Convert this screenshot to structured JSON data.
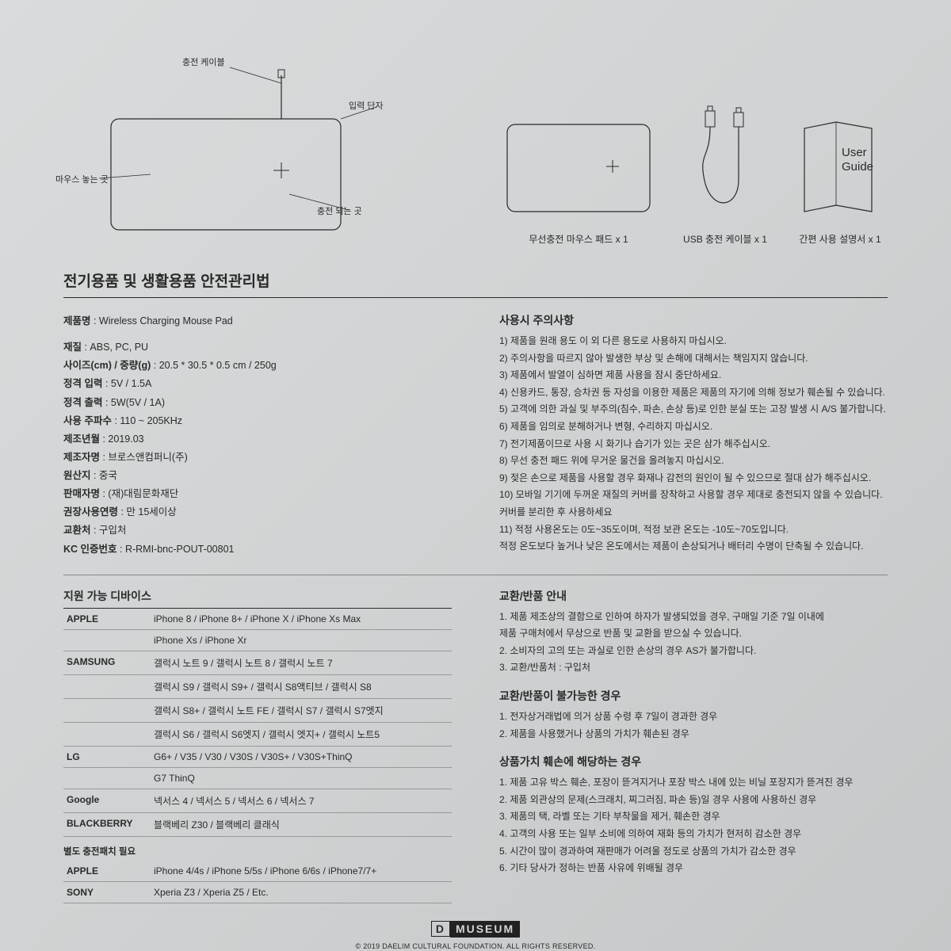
{
  "diagram": {
    "callouts": {
      "cable": "충전 케이블",
      "input": "입력 단자",
      "mouse_area": "마우스 놓는 곳",
      "charge_area": "충전 되는 곳"
    },
    "stroke": "#2a2a2a",
    "bg": "#d5d7d8"
  },
  "package_items": [
    {
      "label": "무선충전 마우스 패드 x 1"
    },
    {
      "label": "USB 충전 케이블 x 1"
    },
    {
      "label": "간편 사용 설명서 x 1"
    }
  ],
  "user_guide_text": "User\nGuide",
  "section_title": "전기용품 및 생활용품 안전관리법",
  "specs": [
    {
      "label": "제품명",
      "value": "Wireless Charging Mouse Pad"
    },
    {
      "label": "재질",
      "value": "ABS, PC, PU"
    },
    {
      "label": "사이즈(cm) / 중량(g)",
      "value": "20.5 * 30.5 * 0.5 cm / 250g"
    },
    {
      "label": "정격 입력",
      "value": "5V / 1.5A"
    },
    {
      "label": "정격 출력",
      "value": "5W(5V / 1A)"
    },
    {
      "label": "사용 주파수",
      "value": "110 ~ 205KHz"
    },
    {
      "label": "제조년월",
      "value": "2019.03"
    },
    {
      "label": "제조자명",
      "value": "브로스앤컴퍼니(주)"
    },
    {
      "label": "원산지",
      "value": "중국"
    },
    {
      "label": "판매자명",
      "value": "(재)대림문화재단"
    },
    {
      "label": "권장사용연령",
      "value": "만 15세이상"
    },
    {
      "label": "교환처",
      "value": "구입처"
    },
    {
      "label": "KC 인증번호",
      "value": "R-RMI-bnc-POUT-00801"
    }
  ],
  "caution_title": "사용시 주의사항",
  "cautions": [
    "1) 제품을 원래 용도 이 외 다른 용도로 사용하지 마십시오.",
    "2) 주의사항을 따르지 않아 발생한 부상 및 손해에 대해서는 책임지지 않습니다.",
    "3) 제품에서 발열이 심하면 제품 사용을 잠시 중단하세요.",
    "4) 신용카드, 통장, 승차권 등 자성을 이용한 제품은 제품의 자기에 의해 정보가 훼손될 수 있습니다.",
    "5) 고객에 의한 과실 및 부주의(침수, 파손, 손상 등)로 인한 분실 또는 고장 발생 시 A/S 불가합니다.",
    "6) 제품을 임의로 분해하거나 변형, 수리하지 마십시오.",
    "7) 전기제품이므로 사용 시 화기나 습기가 있는 곳은 삼가 해주십시오.",
    "8) 무선 충전 패드 위에 무거운 물건을 올려놓지 마십시오.",
    "9) 젖은 손으로 제품을 사용할 경우 화재나 감전의 원인이 될 수 있으므로 절대 삼가 해주십시오.",
    "10) 모바일 기기에 두꺼운 재질의 커버를 장착하고 사용할 경우 제대로 충전되지 않을 수 있습니다. 커버를 분리한 후 사용하세요",
    "11) 적정 사용온도는 0도~35도이며, 적정 보관 온도는 -10도~70도입니다.",
    "      적정 온도보다 높거나 낮은 온도에서는 제품이 손상되거나 배터리 수명이 단축될 수 있습니다."
  ],
  "devices_title": "지원 가능 디바이스",
  "devices": [
    {
      "brand": "APPLE",
      "rows": [
        "iPhone 8 / iPhone 8+ / iPhone X / iPhone Xs Max",
        "iPhone Xs / iPhone Xr"
      ]
    },
    {
      "brand": "SAMSUNG",
      "rows": [
        "갤럭시 노트 9 / 갤럭시 노트 8 / 갤럭시 노트 7",
        "갤럭시 S9 / 갤럭시 S9+ / 갤럭시 S8액티브 / 갤럭시 S8",
        "갤럭시 S8+ / 갤럭시 노트 FE / 갤럭시 S7 / 갤럭시 S7엣지",
        "갤럭시 S6 / 갤럭시 S6엣지 / 갤럭시 엣지+ / 갤럭시 노트5"
      ]
    },
    {
      "brand": "LG",
      "rows": [
        "G6+ / V35 / V30 / V30S / V30S+ / V30S+ThinQ",
        "G7 ThinQ"
      ]
    },
    {
      "brand": "Google",
      "rows": [
        "넥서스 4 / 넥서스 5 / 넥서스 6 / 넥서스 7"
      ]
    },
    {
      "brand": "BLACKBERRY",
      "rows": [
        "블랙베리 Z30 / 블랙베리 클래식"
      ]
    }
  ],
  "patch_note": "별도 충전패치 필요",
  "patch_devices": [
    {
      "brand": "APPLE",
      "rows": [
        "iPhone 4/4s / iPhone 5/5s / iPhone 6/6s / iPhone7/7+"
      ]
    },
    {
      "brand": "SONY",
      "rows": [
        "Xperia Z3 / Xperia Z5 / Etc."
      ]
    }
  ],
  "return_title": "교환/반품 안내",
  "return_items": [
    "1. 제품 제조상의 결함으로 인하여 하자가 발생되었을 경우, 구매일 기준 7일 이내에",
    "    제품 구매처에서 무상으로 반품 및 교환을 받으실 수 있습니다.",
    "2. 소비자의 고의 또는 과실로 인한 손상의 경우 AS가 불가합니다.",
    "3. 교환/반품처 : 구입처"
  ],
  "noreturn_title": "교환/반품이 불가능한 경우",
  "noreturn_items": [
    "1. 전자상거래법에 의거 상품 수령 후 7일이 경과한 경우",
    "2. 제품을 사용했거나 상품의 가치가 훼손된 경우"
  ],
  "damage_title": "상품가치 훼손에 해당하는 경우",
  "damage_items": [
    "1. 제품 고유 박스 훼손, 포장이 뜯겨지거나 포장 박스 내에 있는 비닐 포장지가 뜯겨진 경우",
    "2. 제품 외관상의 문제(스크래치, 찌그러짐, 파손 등)일 경우 사용에 사용하신 경우",
    "3. 제품의 택, 라벨 또는 기타 부착물을 제거, 훼손한 경우",
    "4. 고객의 사용 또는 일부 소비에 의하여 재화 등의 가치가 현저히 감소한 경우",
    "5. 시간이 많이 경과하여 재판매가 어려울 정도로 상품의 가치가 감소한 경우",
    "6. 기타 당사가 정하는 반품 사유에 위배될 경우"
  ],
  "logo": {
    "d": "D",
    "m": "MUSEUM"
  },
  "copyright": "© 2019 DAELIM CULTURAL FOUNDATION. ALL RIGHTS RESERVED."
}
